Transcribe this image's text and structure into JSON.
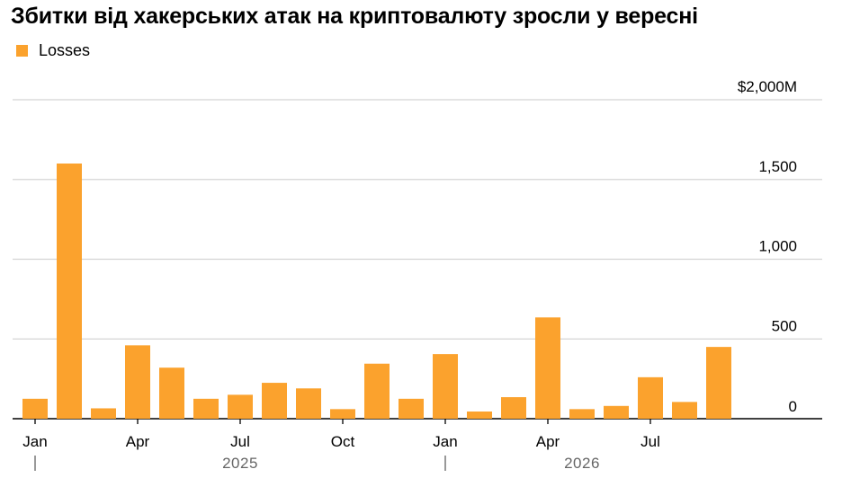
{
  "title": "Збитки від хакерських атак на криптовалюту зросли у вересні",
  "legend": {
    "label": "Losses"
  },
  "colors": {
    "bar": "#FBA22D",
    "grid": "#d4d4d4",
    "axis": "#000000"
  },
  "chart_data": {
    "type": "bar",
    "title": "Збитки від хакерських атак на криптовалюту зросли у вересні",
    "categories": [
      "Jan 2025",
      "Feb 2025",
      "Mar 2025",
      "Apr 2025",
      "May 2025",
      "Jun 2025",
      "Jul 2025",
      "Aug 2025",
      "Sep 2025",
      "Oct 2025",
      "Nov 2025",
      "Dec 2025",
      "Jan 2026",
      "Feb 2026",
      "Mar 2026",
      "Apr 2026",
      "May 2026",
      "Jun 2026",
      "Jul 2026",
      "Aug 2026",
      "Sep 2026"
    ],
    "series": [
      {
        "name": "Losses",
        "values": [
          125,
          1600,
          65,
          460,
          320,
          125,
          150,
          225,
          190,
          60,
          345,
          125,
          405,
          45,
          135,
          635,
          60,
          80,
          260,
          105,
          450
        ]
      }
    ],
    "ylim": [
      0,
      2000
    ],
    "y_ticks": [
      {
        "value": 0,
        "label": "0"
      },
      {
        "value": 500,
        "label": "500"
      },
      {
        "value": 1000,
        "label": "1,000"
      },
      {
        "value": 1500,
        "label": "1,500"
      },
      {
        "value": 2000,
        "label": "$2,000M"
      }
    ],
    "x_ticks": [
      {
        "index": 0,
        "label": "Jan"
      },
      {
        "index": 3,
        "label": "Apr"
      },
      {
        "index": 6,
        "label": "Jul"
      },
      {
        "index": 9,
        "label": "Oct"
      },
      {
        "index": 12,
        "label": "Jan"
      },
      {
        "index": 15,
        "label": "Apr"
      },
      {
        "index": 18,
        "label": "Jul"
      }
    ],
    "years": [
      {
        "label": "2025",
        "center_index": 6,
        "boundary_index": 0
      },
      {
        "label": "2026",
        "center_index": 16,
        "boundary_index": 12
      }
    ],
    "grid": true,
    "y_axis_position": "right",
    "legend_position": "top-left"
  }
}
